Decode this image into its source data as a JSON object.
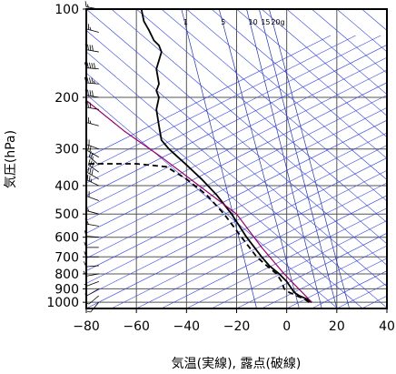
{
  "chart_data": {
    "type": "line",
    "title": "",
    "xlabel": "気温(実線), 露点(破線)",
    "ylabel": "気圧(hPa)",
    "xlim": [
      -80,
      40
    ],
    "ylim": [
      1050,
      100
    ],
    "y_scale": "log",
    "grid": true,
    "x_ticks": [
      -80,
      -60,
      -40,
      -20,
      0,
      20,
      40
    ],
    "x_tick_labels": [
      "−80",
      "−60",
      "−40",
      "−20",
      "0",
      "20",
      "40"
    ],
    "y_ticks": [
      100,
      200,
      300,
      400,
      500,
      600,
      700,
      800,
      900,
      1000
    ],
    "y_tick_labels": [
      "100",
      "200",
      "300",
      "400",
      "500",
      "600",
      "700",
      "800",
      "900",
      "1000"
    ],
    "mixing_ratio_labels": [
      "1",
      "5",
      "10",
      "15",
      "20g"
    ],
    "series": [
      {
        "role": "temperature",
        "style": "solid",
        "color": "#000000",
        "points": [
          [
            10,
            1000
          ],
          [
            8,
            975
          ],
          [
            5,
            950
          ],
          [
            3,
            925
          ],
          [
            2,
            900
          ],
          [
            0,
            850
          ],
          [
            -3,
            800
          ],
          [
            -7,
            750
          ],
          [
            -10,
            700
          ],
          [
            -16,
            600
          ],
          [
            -22,
            500
          ],
          [
            -28,
            430
          ],
          [
            -34,
            380
          ],
          [
            -40,
            340
          ],
          [
            -47,
            300
          ],
          [
            -50,
            280
          ],
          [
            -51,
            250
          ],
          [
            -52,
            220
          ],
          [
            -51,
            200
          ],
          [
            -52,
            190
          ],
          [
            -51,
            180
          ],
          [
            -52,
            160
          ],
          [
            -50,
            140
          ],
          [
            -51,
            133
          ],
          [
            -53,
            128
          ],
          [
            -55,
            118
          ],
          [
            -57,
            110
          ],
          [
            -58,
            100
          ]
        ]
      },
      {
        "role": "dewpoint",
        "style": "dashed",
        "color": "#000000",
        "points": [
          [
            9,
            1000
          ],
          [
            7,
            975
          ],
          [
            4,
            950
          ],
          [
            1,
            925
          ],
          [
            -1,
            900
          ],
          [
            -2,
            850
          ],
          [
            -4,
            800
          ],
          [
            -8,
            750
          ],
          [
            -12,
            700
          ],
          [
            -18,
            600
          ],
          [
            -25,
            500
          ],
          [
            -32,
            430
          ],
          [
            -40,
            380
          ],
          [
            -48,
            345
          ],
          [
            -60,
            337
          ],
          [
            -80,
            337
          ]
        ]
      },
      {
        "role": "parcel-path",
        "style": "solid",
        "color": "#990066",
        "points": [
          [
            10,
            1000
          ],
          [
            -1,
            800
          ],
          [
            -10,
            650
          ],
          [
            -20,
            500
          ],
          [
            -35,
            400
          ],
          [
            -50,
            320
          ],
          [
            -65,
            260
          ],
          [
            -80,
            205
          ]
        ]
      }
    ],
    "wind_barbs": {
      "x_position": -75,
      "pressures": [
        100,
        120,
        140,
        160,
        180,
        200,
        220,
        250,
        300,
        320,
        340,
        360,
        380,
        400,
        450,
        500,
        550,
        600,
        650,
        700,
        750,
        800,
        850,
        900,
        950,
        1000
      ],
      "speeds": [
        15,
        25,
        40,
        50,
        45,
        40,
        30,
        25,
        20,
        20,
        25,
        30,
        30,
        25,
        20,
        15,
        15,
        10,
        10,
        10,
        10,
        10,
        5,
        5,
        5,
        5
      ],
      "directions": [
        280,
        285,
        280,
        275,
        275,
        280,
        280,
        285,
        290,
        300,
        310,
        305,
        300,
        295,
        290,
        285,
        280,
        275,
        270,
        270,
        265,
        260,
        250,
        240,
        230,
        220
      ]
    }
  }
}
